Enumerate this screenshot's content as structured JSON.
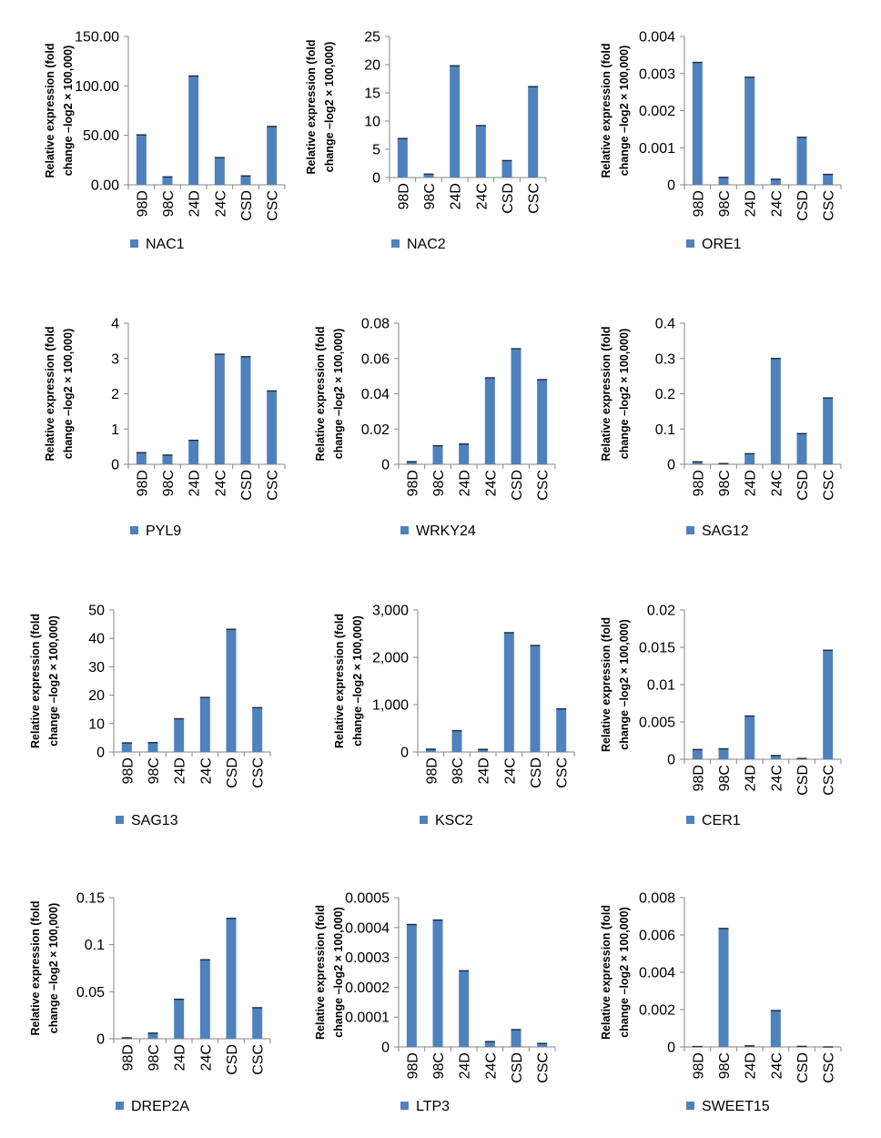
{
  "y_axis_label": [
    "Relative expression (fold",
    "change –log2 × 100,000)"
  ],
  "series_color": "#4F81BD",
  "chart_data": [
    {
      "type": "bar",
      "series": [
        {
          "name": "NAC1",
          "values": [
            50.5,
            8,
            110,
            27.5,
            9,
            59
          ]
        }
      ],
      "categories": [
        "98D",
        "98C",
        "24D",
        "24C",
        "CSD",
        "CSC"
      ],
      "ylabel": "Relative expression (fold change –log2 × 100,000)",
      "ylim": [
        0,
        150
      ],
      "yticks": [
        "0.00",
        "50.00",
        "100.00",
        "150.00"
      ],
      "legend": "bottom"
    },
    {
      "type": "bar",
      "series": [
        {
          "name": "NAC2",
          "values": [
            6.9,
            0.6,
            19.8,
            9.2,
            3.0,
            16.1
          ]
        }
      ],
      "categories": [
        "98D",
        "98C",
        "24D",
        "24C",
        "CSD",
        "CSC"
      ],
      "ylabel": "Relative expression (fold change –log2 × 100,000)",
      "ylim": [
        0,
        25
      ],
      "yticks": [
        "0",
        "5",
        "10",
        "15",
        "20",
        "25"
      ],
      "legend": "bottom"
    },
    {
      "type": "bar",
      "series": [
        {
          "name": "ORE1",
          "values": [
            0.0033,
            0.0002,
            0.0029,
            0.00015,
            0.00128,
            0.00028
          ]
        }
      ],
      "categories": [
        "98D",
        "98C",
        "24D",
        "24C",
        "CSD",
        "CSC"
      ],
      "ylabel": "Relative expression (fold change –log2 × 100,000)",
      "ylim": [
        0,
        0.004
      ],
      "yticks": [
        "0",
        "0.001",
        "0.002",
        "0.003",
        "0.004"
      ],
      "legend": "bottom"
    },
    {
      "type": "bar",
      "series": [
        {
          "name": "PYL9",
          "values": [
            0.33,
            0.26,
            0.68,
            3.12,
            3.05,
            2.08
          ]
        }
      ],
      "categories": [
        "98D",
        "98C",
        "24D",
        "24C",
        "CSD",
        "CSC"
      ],
      "ylabel": "Relative expression (fold change –log2 × 100,000)",
      "ylim": [
        0,
        4
      ],
      "yticks": [
        "0",
        "1",
        "2",
        "3",
        "4"
      ],
      "legend": "bottom"
    },
    {
      "type": "bar",
      "series": [
        {
          "name": "WRKY24",
          "values": [
            0.0015,
            0.0105,
            0.0115,
            0.049,
            0.0655,
            0.048
          ]
        }
      ],
      "categories": [
        "98D",
        "98C",
        "24D",
        "24C",
        "CSD",
        "CSC"
      ],
      "ylabel": "Relative expression (fold change –log2 × 100,000)",
      "ylim": [
        0,
        0.08
      ],
      "yticks": [
        "0",
        "0.02",
        "0.04",
        "0.06",
        "0.08"
      ],
      "legend": "bottom"
    },
    {
      "type": "bar",
      "series": [
        {
          "name": "SAG12",
          "values": [
            0.007,
            0.002,
            0.03,
            0.3,
            0.087,
            0.188
          ]
        }
      ],
      "categories": [
        "98D",
        "98C",
        "24D",
        "24C",
        "CSD",
        "CSC"
      ],
      "ylabel": "Relative expression (fold change –log2 × 100,000)",
      "ylim": [
        0,
        0.4
      ],
      "yticks": [
        "0",
        "0.1",
        "0.2",
        "0.3",
        "0.4"
      ],
      "legend": "bottom"
    },
    {
      "type": "bar",
      "series": [
        {
          "name": "SAG13",
          "values": [
            3.2,
            3.3,
            11.7,
            19.2,
            43.2,
            15.6
          ]
        }
      ],
      "categories": [
        "98D",
        "98C",
        "24D",
        "24C",
        "CSD",
        "CSC"
      ],
      "ylabel": "Relative expression (fold change –log2 × 100,000)",
      "ylim": [
        0,
        50
      ],
      "yticks": [
        "0",
        "10",
        "20",
        "30",
        "40",
        "50"
      ],
      "legend": "bottom"
    },
    {
      "type": "bar",
      "series": [
        {
          "name": "KSC2",
          "values": [
            60,
            450,
            55,
            2520,
            2250,
            910
          ]
        }
      ],
      "categories": [
        "98D",
        "98C",
        "24D",
        "24C",
        "CSD",
        "CSC"
      ],
      "ylabel": "Relative expression (fold change –log2 × 100,000)",
      "ylim": [
        0,
        3000
      ],
      "yticks": [
        "0",
        "1,000",
        "2,000",
        "3,000"
      ],
      "legend": "bottom"
    },
    {
      "type": "bar",
      "series": [
        {
          "name": "CER1",
          "values": [
            0.0013,
            0.0014,
            0.0058,
            0.0005,
            0.0001,
            0.0146
          ]
        }
      ],
      "categories": [
        "98D",
        "98C",
        "24D",
        "24C",
        "CSD",
        "CSC"
      ],
      "ylabel": "Relative expression (fold change –log2 × 100,000)",
      "ylim": [
        0,
        0.02
      ],
      "yticks": [
        "0",
        "0.005",
        "0.01",
        "0.015",
        "0.02"
      ],
      "legend": "bottom"
    },
    {
      "type": "bar",
      "series": [
        {
          "name": "DREP2A",
          "values": [
            0.001,
            0.006,
            0.042,
            0.084,
            0.128,
            0.033
          ]
        }
      ],
      "categories": [
        "98D",
        "98C",
        "24D",
        "24C",
        "CSD",
        "CSC"
      ],
      "ylabel": "Relative expression (fold change –log2 × 100,000)",
      "ylim": [
        0,
        0.15
      ],
      "yticks": [
        "0",
        "0.05",
        "0.1",
        "0.15"
      ],
      "legend": "bottom"
    },
    {
      "type": "bar",
      "series": [
        {
          "name": "LTP3",
          "values": [
            0.00041,
            0.000425,
            0.000255,
            1.8e-05,
            5.8e-05,
            1.2e-05
          ]
        }
      ],
      "categories": [
        "98D",
        "98C",
        "24D",
        "24C",
        "CSD",
        "CSC"
      ],
      "ylabel": "Relative expression (fold change –log2 × 100,000)",
      "ylim": [
        0,
        0.0005
      ],
      "yticks": [
        "0",
        "0.0001",
        "0.0002",
        "0.0003",
        "0.0004",
        "0.0005"
      ],
      "legend": "bottom"
    },
    {
      "type": "bar",
      "series": [
        {
          "name": "SWEET15",
          "values": [
            2e-05,
            0.00635,
            6e-05,
            0.00195,
            3e-05,
            0
          ]
        }
      ],
      "categories": [
        "98D",
        "98C",
        "24D",
        "24C",
        "CSD",
        "CSC"
      ],
      "ylabel": "Relative expression (fold change –log2 × 100,000)",
      "ylim": [
        0,
        0.008
      ],
      "yticks": [
        "0",
        "0.002",
        "0.004",
        "0.006",
        "0.008"
      ],
      "legend": "bottom"
    }
  ]
}
